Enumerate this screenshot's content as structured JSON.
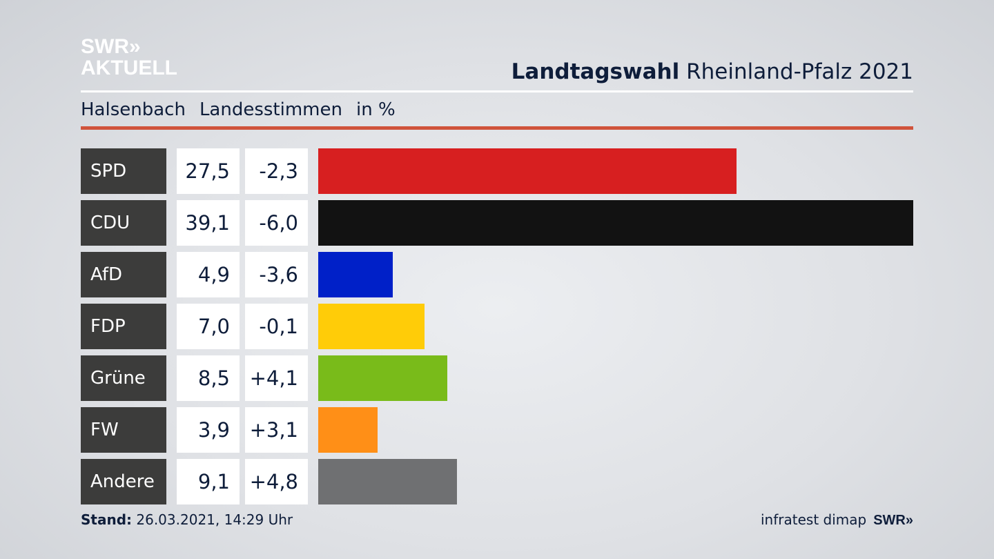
{
  "logo": {
    "line1": "SWR»",
    "line2": "AKTUELL"
  },
  "header": {
    "title_bold": "Landtagswahl",
    "title_rest": "Rheinland-Pfalz 2021"
  },
  "subheader": {
    "place": "Halsenbach",
    "type": "Landesstimmen",
    "unit": "in %"
  },
  "chart_data": {
    "type": "bar",
    "orientation": "horizontal",
    "title": "Landtagswahl Rheinland-Pfalz 2021",
    "categories": [
      "SPD",
      "CDU",
      "AfD",
      "FDP",
      "Grüne",
      "FW",
      "Andere"
    ],
    "values": [
      27.5,
      39.1,
      4.9,
      7.0,
      8.5,
      3.9,
      9.1
    ],
    "value_labels": [
      "27,5",
      "39,1",
      "4,9",
      "7,0",
      "8,5",
      "3,9",
      "9,1"
    ],
    "changes": [
      "-2,3",
      "-6,0",
      "-3,6",
      "-0,1",
      "+4,1",
      "+3,1",
      "+4,8"
    ],
    "colors": [
      "#d71f20",
      "#121212",
      "#0020c8",
      "#ffcc08",
      "#79bb1a",
      "#ff8f17",
      "#6f7072"
    ],
    "xlim": [
      0,
      39.1
    ]
  },
  "footer": {
    "stand_label": "Stand:",
    "stand_value": "26.03.2021, 14:29 Uhr",
    "source": "infratest dimap",
    "brand": "SWR»"
  }
}
